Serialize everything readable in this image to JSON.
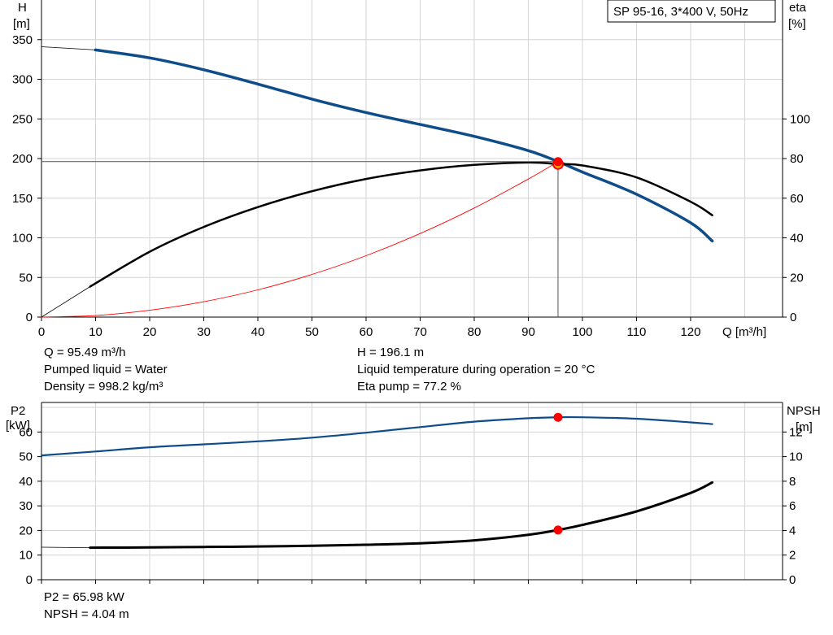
{
  "chart_data": [
    {
      "type": "line",
      "title": "SP 95-16, 3*400 V, 50Hz",
      "xlabel": "Q [m³/h]",
      "ylabel_left": [
        "H",
        "[m]"
      ],
      "ylabel_right": [
        "eta",
        "[%]"
      ],
      "xlim": [
        0,
        137
      ],
      "ylim_left": [
        0,
        400
      ],
      "ylim_right": [
        0,
        160
      ],
      "x_ticks": [
        0,
        10,
        20,
        30,
        40,
        50,
        60,
        70,
        80,
        90,
        100,
        110,
        120
      ],
      "y_ticks_left": [
        0,
        50,
        100,
        150,
        200,
        250,
        300,
        350
      ],
      "y_ticks_right": [
        0,
        20,
        40,
        60,
        80,
        100
      ],
      "grid": true,
      "series": [
        {
          "axis": "left",
          "style": "head",
          "color": "#0f4c8a",
          "x": [
            10,
            20,
            30,
            40,
            50,
            60,
            70,
            80,
            90,
            95.49,
            100,
            110,
            120,
            124
          ],
          "y": [
            337,
            327,
            312,
            294,
            275,
            258,
            243,
            228,
            210,
            196.1,
            183,
            155,
            119,
            96
          ]
        },
        {
          "axis": "left",
          "style": "extrapolation",
          "color": "#000000",
          "x": [
            0,
            10
          ],
          "y": [
            341,
            337
          ]
        },
        {
          "axis": "right",
          "style": "efficiency",
          "color": "#000000",
          "x": [
            9,
            20,
            30,
            40,
            50,
            60,
            70,
            80,
            90,
            95.49,
            100,
            110,
            120,
            124
          ],
          "y": [
            15.4,
            33,
            45.5,
            55.5,
            63.5,
            69.7,
            74,
            76.8,
            78,
            77.2,
            76.5,
            70.5,
            58.2,
            51.4
          ]
        },
        {
          "axis": "right",
          "style": "extrapolation",
          "color": "#000000",
          "x": [
            0,
            9
          ],
          "y": [
            0,
            15.4
          ]
        },
        {
          "axis": "left",
          "style": "system",
          "color": "#ff0000",
          "x": [
            0,
            10,
            20,
            30,
            40,
            50,
            60,
            70,
            80,
            90,
            95.49
          ],
          "y": [
            0,
            2,
            8.6,
            19.4,
            34.4,
            53.8,
            77.4,
            105.4,
            137.6,
            174.2,
            196.1
          ]
        }
      ],
      "operating_point": {
        "Q": 95.49,
        "H": 196.1,
        "eta": 77.2
      },
      "info_left": [
        "Q = 95.49 m³/h",
        "Pumped liquid = Water",
        "Density = 998.2 kg/m³"
      ],
      "info_right": [
        "H = 196.1 m",
        "Liquid temperature during operation = 20 °C",
        "Eta pump = 77.2 %"
      ]
    },
    {
      "type": "line",
      "xlabel": "",
      "ylabel_left": [
        "P2",
        "[kW]"
      ],
      "ylabel_right": [
        "NPSH",
        "[m]"
      ],
      "xlim": [
        0,
        137
      ],
      "ylim_left": [
        0,
        72
      ],
      "ylim_right": [
        0,
        14.4
      ],
      "y_ticks_left": [
        0,
        10,
        20,
        30,
        40,
        50,
        60
      ],
      "y_ticks_right": [
        0,
        2,
        4,
        6,
        8,
        10,
        12
      ],
      "grid": true,
      "series": [
        {
          "axis": "left",
          "style": "power",
          "color": "#0f4c8a",
          "x": [
            0,
            10,
            20,
            30,
            40,
            50,
            60,
            70,
            80,
            90,
            95.49,
            100,
            110,
            120,
            124
          ],
          "y": [
            50.5,
            52.1,
            53.8,
            55,
            56.2,
            57.7,
            59.7,
            62,
            64.2,
            65.6,
            65.98,
            66,
            65.4,
            63.9,
            63.2
          ]
        },
        {
          "axis": "right",
          "style": "npsh",
          "color": "#000000",
          "x": [
            9,
            20,
            30,
            40,
            50,
            60,
            70,
            80,
            90,
            95.49,
            100,
            110,
            120,
            124
          ],
          "y": [
            2.6,
            2.62,
            2.66,
            2.7,
            2.76,
            2.84,
            2.96,
            3.2,
            3.65,
            4.04,
            4.45,
            5.55,
            7.05,
            7.9
          ]
        },
        {
          "axis": "right",
          "style": "extrapolation",
          "color": "#000000",
          "x": [
            0,
            9
          ],
          "y": [
            2.64,
            2.6
          ]
        }
      ],
      "operating_point": {
        "Q": 95.49,
        "P2": 65.98,
        "NPSH": 4.04
      },
      "info_left": [
        "P2 = 65.98 kW",
        "NPSH = 4.04 m"
      ]
    }
  ]
}
